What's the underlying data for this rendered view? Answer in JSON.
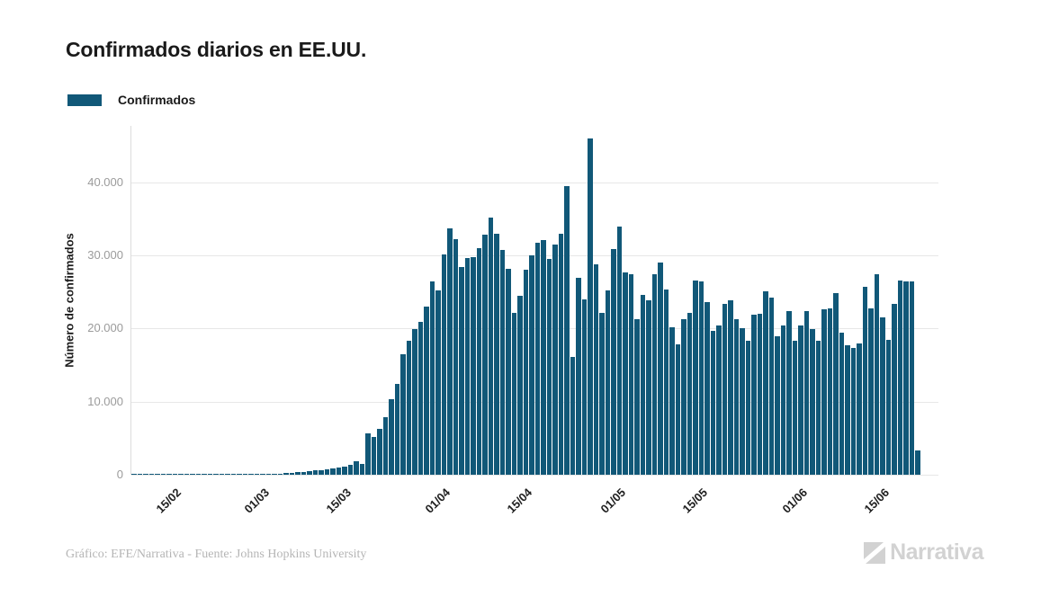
{
  "title": "Confirmados diarios en EE.UU.",
  "legend": {
    "label": "Confirmados",
    "color": "#115878"
  },
  "y_axis_title": "Número de confirmados",
  "footer": {
    "credit": "Gráfico: EFE/Narrativa - Fuente: Johns Hopkins University"
  },
  "logo": {
    "text": "Narrativa",
    "color": "#d2d2d2"
  },
  "chart_data": {
    "type": "bar",
    "title": "Confirmados diarios en EE.UU.",
    "xlabel": "",
    "ylabel": "Número de confirmados",
    "series_name": "Confirmados",
    "bar_color": "#115878",
    "grid": true,
    "legend_position": "top-left",
    "ylim": [
      0,
      47750
    ],
    "yticks": [
      {
        "value": 0,
        "label": "0"
      },
      {
        "value": 10000,
        "label": "10.000"
      },
      {
        "value": 20000,
        "label": "20.000"
      },
      {
        "value": 30000,
        "label": "30.000"
      },
      {
        "value": 40000,
        "label": "40.000"
      }
    ],
    "x_unit": "day",
    "x_start_date": "08/02",
    "x_end_date": "21/06",
    "x_total_slots": 138,
    "xticks": [
      {
        "index": 7,
        "label": "15/02"
      },
      {
        "index": 22,
        "label": "01/03"
      },
      {
        "index": 36,
        "label": "15/03"
      },
      {
        "index": 53,
        "label": "01/04"
      },
      {
        "index": 67,
        "label": "15/04"
      },
      {
        "index": 83,
        "label": "01/05"
      },
      {
        "index": 97,
        "label": "15/05"
      },
      {
        "index": 114,
        "label": "01/06"
      },
      {
        "index": 128,
        "label": "15/06"
      }
    ],
    "values": [
      5,
      5,
      5,
      8,
      8,
      10,
      10,
      10,
      12,
      12,
      15,
      15,
      18,
      20,
      22,
      25,
      28,
      30,
      35,
      40,
      45,
      55,
      70,
      90,
      120,
      160,
      210,
      260,
      320,
      390,
      460,
      560,
      660,
      780,
      900,
      1000,
      1100,
      1400,
      1900,
      1500,
      5700,
      5200,
      6300,
      7900,
      10300,
      12400,
      16500,
      18300,
      19900,
      20900,
      23000,
      26400,
      25200,
      30200,
      33700,
      32200,
      28400,
      29600,
      29800,
      31000,
      32800,
      35200,
      33000,
      30800,
      28200,
      22100,
      24500,
      28100,
      30000,
      31800,
      32100,
      29500,
      31500,
      33000,
      39500,
      16100,
      27000,
      24000,
      46000,
      28800,
      22200,
      25200,
      30900,
      34000,
      27700,
      27500,
      21300,
      24600,
      23900,
      27500,
      29100,
      25400,
      20200,
      17900,
      21300,
      22100,
      26600,
      26400,
      23600,
      19700,
      20400,
      23400,
      23900,
      21300,
      20100,
      18300,
      21900,
      22000,
      25100,
      24200,
      18900,
      20400,
      22400,
      18300,
      20400,
      22400,
      20000,
      18300,
      22700,
      22800,
      24800,
      19500,
      17700,
      17400,
      18000,
      25700,
      22800,
      27500,
      21600,
      18500,
      23400,
      26600,
      26400,
      26400,
      3300
    ]
  }
}
